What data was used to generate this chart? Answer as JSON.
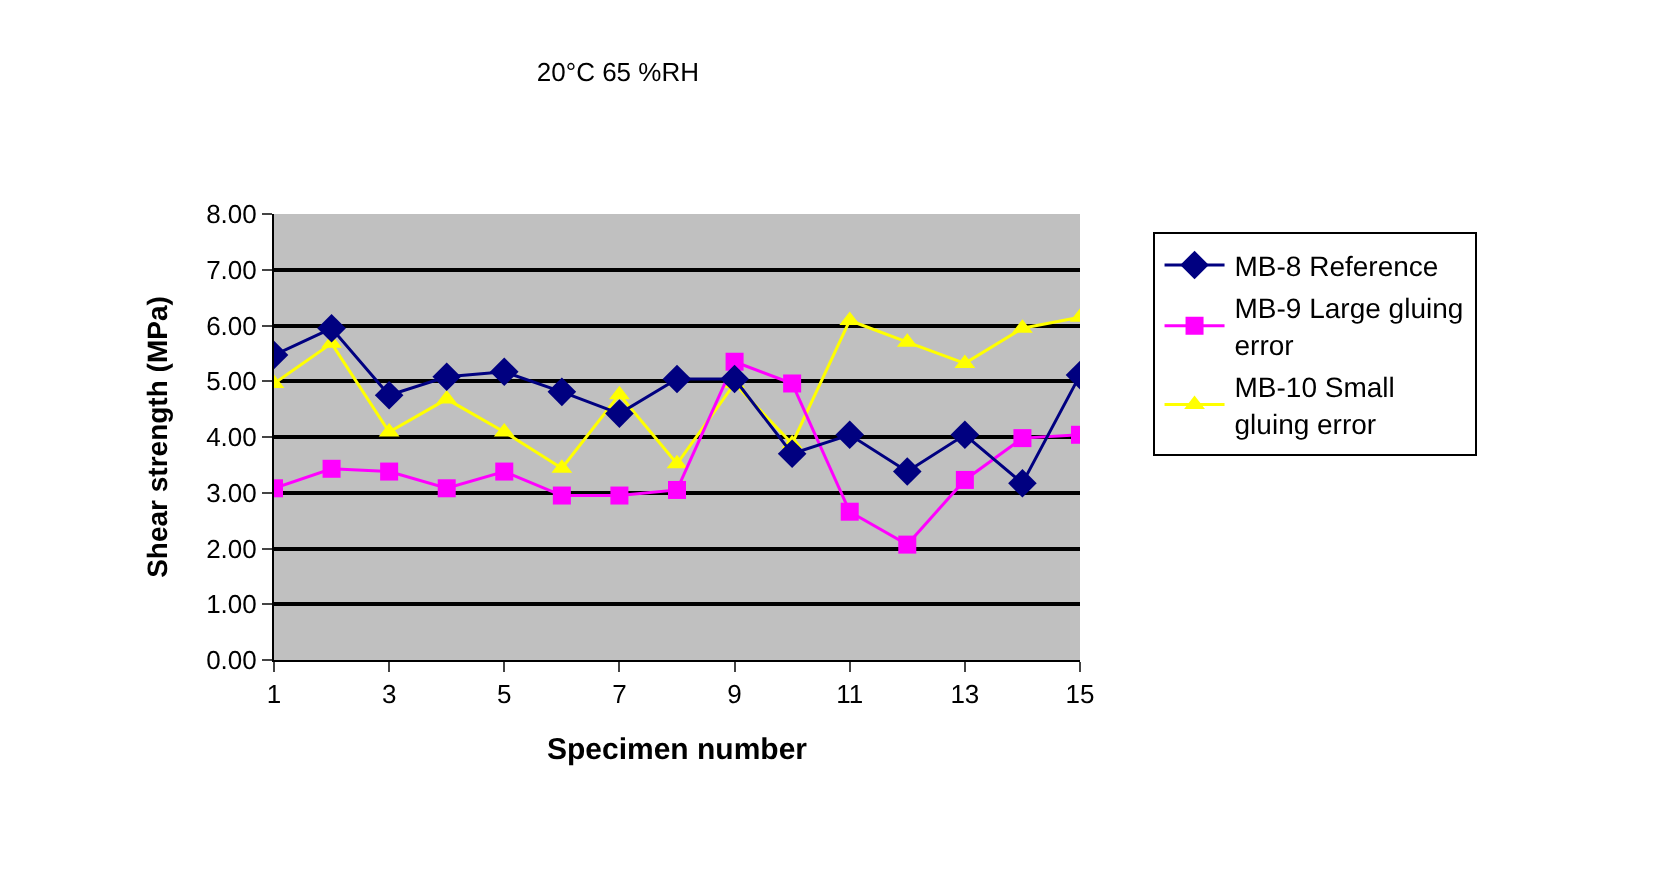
{
  "chart_data": {
    "type": "line",
    "title": "20°C 65 %RH",
    "xlabel": "Specimen number",
    "ylabel": "Shear strength (MPa)",
    "x": [
      1,
      2,
      3,
      4,
      5,
      6,
      7,
      8,
      9,
      10,
      11,
      12,
      13,
      14,
      15
    ],
    "series": [
      {
        "name": "MB-8 Reference",
        "color": "#000080",
        "marker": "diamond",
        "values": [
          5.47,
          5.95,
          4.75,
          5.08,
          5.17,
          4.81,
          4.42,
          5.04,
          5.04,
          3.7,
          4.04,
          3.38,
          4.04,
          3.17,
          5.11
        ]
      },
      {
        "name": "MB-9 Large gluing error",
        "color": "#ff00ff",
        "marker": "square",
        "values": [
          3.08,
          3.43,
          3.38,
          3.08,
          3.38,
          2.95,
          2.95,
          3.05,
          5.35,
          4.96,
          2.66,
          2.07,
          3.23,
          3.98,
          4.04
        ]
      },
      {
        "name": "MB-10 Small gluing error",
        "color": "#ffff00",
        "marker": "triangle",
        "values": [
          4.96,
          5.68,
          4.09,
          4.68,
          4.09,
          3.44,
          4.76,
          3.52,
          4.96,
          3.88,
          6.09,
          5.7,
          5.32,
          5.95,
          6.15
        ]
      }
    ],
    "xlim": [
      1,
      15
    ],
    "xticks": [
      1,
      3,
      5,
      7,
      9,
      11,
      13,
      15
    ],
    "ylim": [
      0,
      8
    ],
    "yticks": [
      {
        "value": 0,
        "label": "0.00"
      },
      {
        "value": 1,
        "label": "1.00"
      },
      {
        "value": 2,
        "label": "2.00"
      },
      {
        "value": 3,
        "label": "3.00"
      },
      {
        "value": 4,
        "label": "4.00"
      },
      {
        "value": 5,
        "label": "5.00"
      },
      {
        "value": 6,
        "label": "6.00"
      },
      {
        "value": 7,
        "label": "7.00"
      },
      {
        "value": 8,
        "label": "8.00"
      }
    ],
    "grid": "y",
    "legend": "right",
    "line_style": "solid"
  }
}
